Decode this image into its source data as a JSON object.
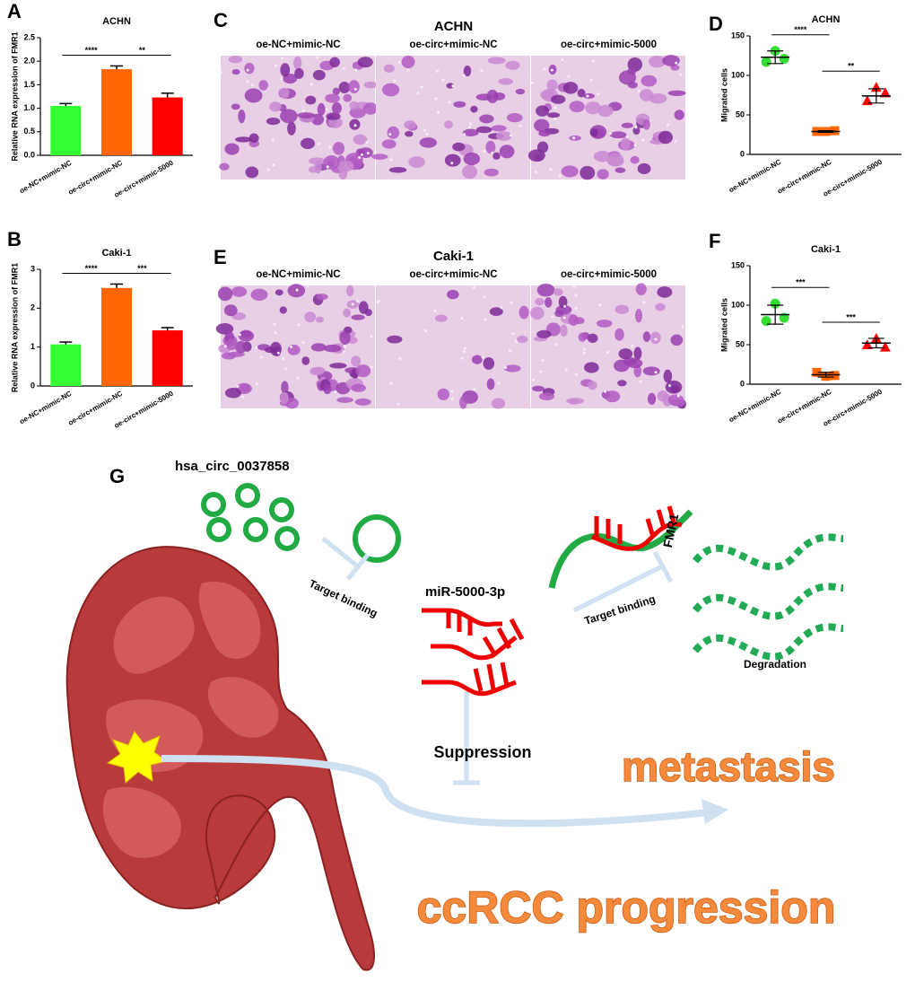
{
  "chart_data": [
    {
      "type": "bar",
      "panel": "A",
      "title": "ACHN",
      "ylabel": "Relative RNA expression of FMR1",
      "categories": [
        "oe-NC+mimic-NC",
        "oe-circ+mimic-NC",
        "oe-circ+mimic-5000"
      ],
      "values": [
        1.05,
        1.83,
        1.23
      ],
      "errors": [
        0.05,
        0.07,
        0.09
      ],
      "colors": [
        "#33ff33",
        "#ff6600",
        "#ff0000"
      ],
      "ylim": [
        0,
        2.5
      ],
      "yticks": [
        {
          "value": 0,
          "label": "0.0"
        },
        {
          "value": 0.5,
          "label": "0.5"
        },
        {
          "value": 1,
          "label": "1.0"
        },
        {
          "value": 1.5,
          "label": "1.5"
        },
        {
          "value": 2,
          "label": "2.0"
        },
        {
          "value": 2.5,
          "label": "2.5"
        }
      ],
      "annotations": [
        "****",
        "**"
      ]
    },
    {
      "type": "bar",
      "panel": "B",
      "title": "Caki-1",
      "ylabel": "Relative RNA expression of FMR1",
      "categories": [
        "oe-NC+mimic-NC",
        "oe-circ+mimic-NC",
        "oe-circ+mimic-5000"
      ],
      "values": [
        1.07,
        2.52,
        1.43
      ],
      "errors": [
        0.06,
        0.1,
        0.07
      ],
      "colors": [
        "#33ff33",
        "#ff6600",
        "#ff0000"
      ],
      "ylim": [
        0,
        3
      ],
      "yticks": [
        0,
        1,
        2,
        3
      ],
      "annotations": [
        "****",
        "***"
      ]
    },
    {
      "type": "scatter",
      "panel": "D",
      "title": "ACHN",
      "ylabel": "Migrated cells",
      "categories": [
        "oe-NC+mimic-NC",
        "oe-circ+mimic-NC",
        "oe-circ+mimic-5000"
      ],
      "points": [
        [
          117,
          131,
          121
        ],
        [
          29,
          29,
          30
        ],
        [
          68,
          85,
          78
        ]
      ],
      "means": [
        123,
        29,
        74
      ],
      "errors": [
        8,
        1,
        9
      ],
      "colors": [
        "#33dd33",
        "#ff6600",
        "#ff0000"
      ],
      "markers": [
        "circle",
        "square",
        "triangle"
      ],
      "ylim": [
        0,
        150
      ],
      "yticks": [
        0,
        50,
        100,
        150
      ],
      "annotations": [
        "****",
        "**"
      ]
    },
    {
      "type": "scatter",
      "panel": "F",
      "title": "Caki-1",
      "ylabel": "Migrated cells",
      "categories": [
        "oe-NC+mimic-NC",
        "oe-circ+mimic-NC",
        "oe-circ+mimic-5000"
      ],
      "points": [
        [
          80,
          102,
          84
        ],
        [
          15,
          10,
          11
        ],
        [
          50,
          58,
          47
        ]
      ],
      "means": [
        88,
        12,
        52
      ],
      "errors": [
        12,
        3,
        6
      ],
      "colors": [
        "#33dd33",
        "#ff6600",
        "#ff0000"
      ],
      "markers": [
        "circle",
        "square",
        "triangle"
      ],
      "ylim": [
        0,
        150
      ],
      "yticks": [
        0,
        50,
        100,
        150
      ],
      "annotations": [
        "***",
        "***"
      ]
    }
  ],
  "images": [
    {
      "panel": "C",
      "title": "ACHN",
      "labels": [
        "oe-NC+mimic-NC",
        "oe-circ+mimic-NC",
        "oe-circ+mimic-5000"
      ]
    },
    {
      "panel": "E",
      "title": "Caki-1",
      "labels": [
        "oe-NC+mimic-NC",
        "oe-circ+mimic-NC",
        "oe-circ+mimic-5000"
      ]
    }
  ],
  "diagram": {
    "panel": "G",
    "circ": "hsa_circ_0037858",
    "binding1": "Target binding",
    "mirna": "miR-5000-3p",
    "binding2": "Target binding",
    "gene": "FMR1",
    "degradation": "Degradation",
    "suppression": "Suppression",
    "metastasis": "metastasis",
    "progression": "ccRCC progression"
  }
}
